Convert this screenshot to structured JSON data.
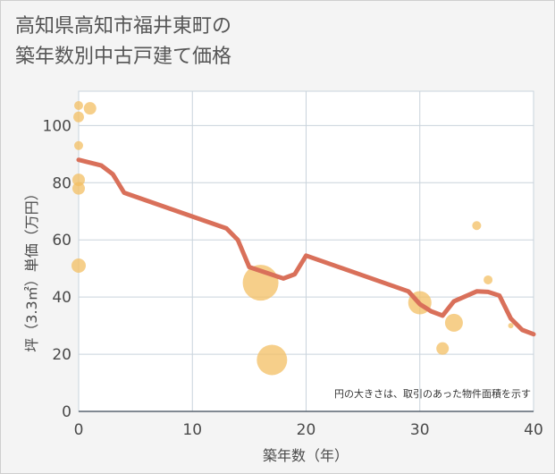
{
  "title_line1": "高知県高知市福井東町の",
  "title_line2": "築年数別中古戸建て価格",
  "chart_data": {
    "type": "scatter",
    "title": "高知県高知市福井東町の築年数別中古戸建て価格",
    "xlabel": "築年数（年）",
    "ylabel": "坪（3.3㎡）単価（万円）",
    "xlim": [
      0,
      40
    ],
    "ylim": [
      0,
      112
    ],
    "x_ticks": [
      0,
      10,
      20,
      30,
      40
    ],
    "y_ticks": [
      0,
      20,
      40,
      60,
      80,
      100
    ],
    "grid": true,
    "annotation": "円の大きさは、取引のあった物件面積を示す",
    "colors": {
      "bubble": "#f3bf63",
      "line": "#d9705a",
      "grid": "#c9d3dc",
      "background": "#ffffff"
    },
    "scatter_points": [
      {
        "x": 0,
        "y": 107,
        "size": 5
      },
      {
        "x": 0,
        "y": 103,
        "size": 6
      },
      {
        "x": 1,
        "y": 106,
        "size": 7
      },
      {
        "x": 0,
        "y": 93,
        "size": 5
      },
      {
        "x": 0,
        "y": 81,
        "size": 7
      },
      {
        "x": 0,
        "y": 78,
        "size": 7
      },
      {
        "x": 0,
        "y": 51,
        "size": 8
      },
      {
        "x": 16,
        "y": 45,
        "size": 20
      },
      {
        "x": 17,
        "y": 18,
        "size": 17
      },
      {
        "x": 30,
        "y": 38,
        "size": 13
      },
      {
        "x": 32,
        "y": 22,
        "size": 7
      },
      {
        "x": 33,
        "y": 31,
        "size": 10
      },
      {
        "x": 35,
        "y": 65,
        "size": 5
      },
      {
        "x": 36,
        "y": 46,
        "size": 5
      },
      {
        "x": 38,
        "y": 30,
        "size": 3
      }
    ],
    "trend_line": {
      "x": [
        0,
        2,
        3,
        4,
        13,
        14,
        15,
        18,
        19,
        20,
        29,
        30,
        31,
        32,
        33,
        35,
        36,
        37,
        38,
        39,
        40
      ],
      "y": [
        88,
        86,
        83,
        76.5,
        64,
        60,
        50.5,
        46.5,
        48,
        54.5,
        42,
        37.5,
        35,
        33.5,
        38.5,
        42,
        41.8,
        40.5,
        32.5,
        28.5,
        27
      ]
    }
  }
}
